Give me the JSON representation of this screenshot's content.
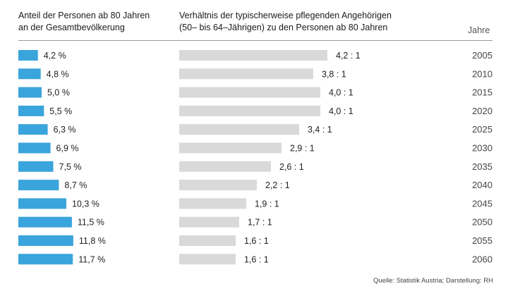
{
  "header": {
    "left_lines": [
      "Anteil der Personen ab 80 Jahren",
      "an der Gesamtbevölkerung"
    ],
    "mid_lines": [
      "Verhältnis der typischerweise pflegenden Angehörigen",
      "(50– bis 64–Jährigen) zu den Personen ab 80 Jahren"
    ],
    "years_label": "Jahre"
  },
  "source": "Quelle: Statistik Austria; Darstellung: RH",
  "colors": {
    "share_bar": "#3aa4dc",
    "ratio_bar": "#d9d9d9"
  },
  "chart_data": [
    {
      "type": "bar",
      "orientation": "horizontal",
      "title": "Anteil der Personen ab 80 Jahren an der Gesamtbevölkerung",
      "categories": [
        "2005",
        "2010",
        "2015",
        "2020",
        "2025",
        "2030",
        "2035",
        "2040",
        "2045",
        "2050",
        "2055",
        "2060"
      ],
      "values": [
        4.2,
        4.8,
        5.0,
        5.5,
        6.3,
        6.9,
        7.5,
        8.7,
        10.3,
        11.5,
        11.8,
        11.7
      ],
      "labels": [
        "4,2 %",
        "4,8 %",
        "5,0 %",
        "5,5 %",
        "6,3 %",
        "6,9 %",
        "7,5 %",
        "8,7 %",
        "10,3 %",
        "11,5 %",
        "11,8 %",
        "11,7 %"
      ]
    },
    {
      "type": "bar",
      "orientation": "horizontal",
      "title": "Verhältnis der typischerweise pflegenden Angehörigen (50– bis 64–Jährigen) zu den Personen ab 80 Jahren",
      "categories": [
        "2005",
        "2010",
        "2015",
        "2020",
        "2025",
        "2030",
        "2035",
        "2040",
        "2045",
        "2050",
        "2055",
        "2060"
      ],
      "values": [
        4.2,
        3.8,
        4.0,
        4.0,
        3.4,
        2.9,
        2.6,
        2.2,
        1.9,
        1.7,
        1.6,
        1.6
      ],
      "labels": [
        "4,2 : 1",
        "3,8 : 1",
        "4,0 : 1",
        "4,0 : 1",
        "3,4 : 1",
        "2,9 : 1",
        "2,6 : 1",
        "2,2 : 1",
        "1,9 : 1",
        "1,7 : 1",
        "1,6 : 1",
        "1,6 : 1"
      ]
    }
  ]
}
